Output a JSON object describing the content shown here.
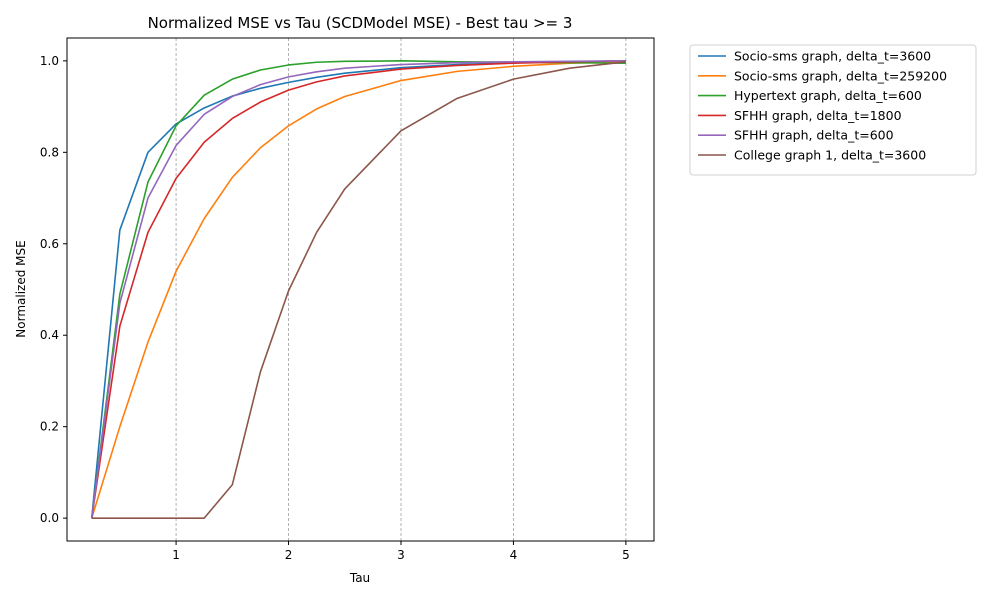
{
  "chart_data": {
    "type": "line",
    "title": "Normalized MSE vs Tau (SCDModel MSE) - Best tau >= 3",
    "xlabel": "Tau",
    "ylabel": "Normalized MSE",
    "xlim": [
      0.03,
      5.25
    ],
    "ylim": [
      -0.05,
      1.05
    ],
    "xticks": [
      1,
      2,
      3,
      4,
      5
    ],
    "xtick_labels": [
      "1",
      "2",
      "3",
      "4",
      "5"
    ],
    "yticks": [
      0.0,
      0.2,
      0.4,
      0.6,
      0.8,
      1.0
    ],
    "ytick_labels": [
      "0.0",
      "0.2",
      "0.4",
      "0.6",
      "0.8",
      "1.0"
    ],
    "grid": "vertical dashed at x ticks",
    "legend_position": "outside right, top",
    "series": [
      {
        "name": "Socio-sms graph, delta_t=3600",
        "color": "#1f77b4",
        "x": [
          0.25,
          0.5,
          0.75,
          1.0,
          1.25,
          1.5,
          1.75,
          2.0,
          2.25,
          2.5,
          3.0,
          3.5,
          4.0,
          4.5,
          5.0
        ],
        "y": [
          0.0,
          0.63,
          0.8,
          0.862,
          0.897,
          0.923,
          0.94,
          0.953,
          0.964,
          0.973,
          0.985,
          0.992,
          0.996,
          0.998,
          1.0
        ]
      },
      {
        "name": "Socio-sms graph, delta_t=259200",
        "color": "#ff7f0e",
        "x": [
          0.25,
          0.5,
          0.75,
          1.0,
          1.25,
          1.5,
          1.75,
          2.0,
          2.25,
          2.5,
          3.0,
          3.5,
          4.0,
          4.5,
          5.0
        ],
        "y": [
          0.0,
          0.2,
          0.385,
          0.54,
          0.655,
          0.745,
          0.81,
          0.858,
          0.895,
          0.922,
          0.957,
          0.977,
          0.988,
          0.995,
          0.998
        ]
      },
      {
        "name": "Hypertext graph, delta_t=600",
        "color": "#2ca02c",
        "x": [
          0.25,
          0.5,
          0.75,
          1.0,
          1.25,
          1.5,
          1.75,
          2.0,
          2.25,
          2.5,
          3.0,
          3.5,
          4.0,
          4.5,
          5.0
        ],
        "y": [
          0.0,
          0.49,
          0.735,
          0.858,
          0.925,
          0.96,
          0.98,
          0.991,
          0.997,
          0.999,
          1.0,
          0.998,
          0.997,
          0.996,
          0.995
        ]
      },
      {
        "name": "SFHH graph, delta_t=1800",
        "color": "#d62728",
        "x": [
          0.25,
          0.5,
          0.75,
          1.0,
          1.25,
          1.5,
          1.75,
          2.0,
          2.25,
          2.5,
          3.0,
          3.5,
          4.0,
          4.5,
          5.0
        ],
        "y": [
          0.0,
          0.42,
          0.625,
          0.743,
          0.822,
          0.874,
          0.91,
          0.936,
          0.954,
          0.967,
          0.982,
          0.99,
          0.995,
          0.998,
          1.0
        ]
      },
      {
        "name": "SFHH graph, delta_t=600",
        "color": "#9467bd",
        "x": [
          0.25,
          0.5,
          0.75,
          1.0,
          1.25,
          1.5,
          1.75,
          2.0,
          2.25,
          2.5,
          3.0,
          3.5,
          4.0,
          4.5,
          5.0
        ],
        "y": [
          0.0,
          0.47,
          0.7,
          0.815,
          0.883,
          0.922,
          0.948,
          0.965,
          0.976,
          0.984,
          0.992,
          0.996,
          0.998,
          0.999,
          1.0
        ]
      },
      {
        "name": "College graph 1, delta_t=3600",
        "color": "#8c564b",
        "x": [
          0.25,
          0.5,
          0.75,
          1.0,
          1.25,
          1.5,
          1.75,
          2.0,
          2.25,
          2.5,
          3.0,
          3.5,
          4.0,
          4.5,
          5.0
        ],
        "y": [
          0.0,
          0.0,
          0.0,
          0.0,
          0.0,
          0.073,
          0.32,
          0.497,
          0.625,
          0.72,
          0.847,
          0.918,
          0.96,
          0.984,
          0.998
        ]
      }
    ]
  }
}
